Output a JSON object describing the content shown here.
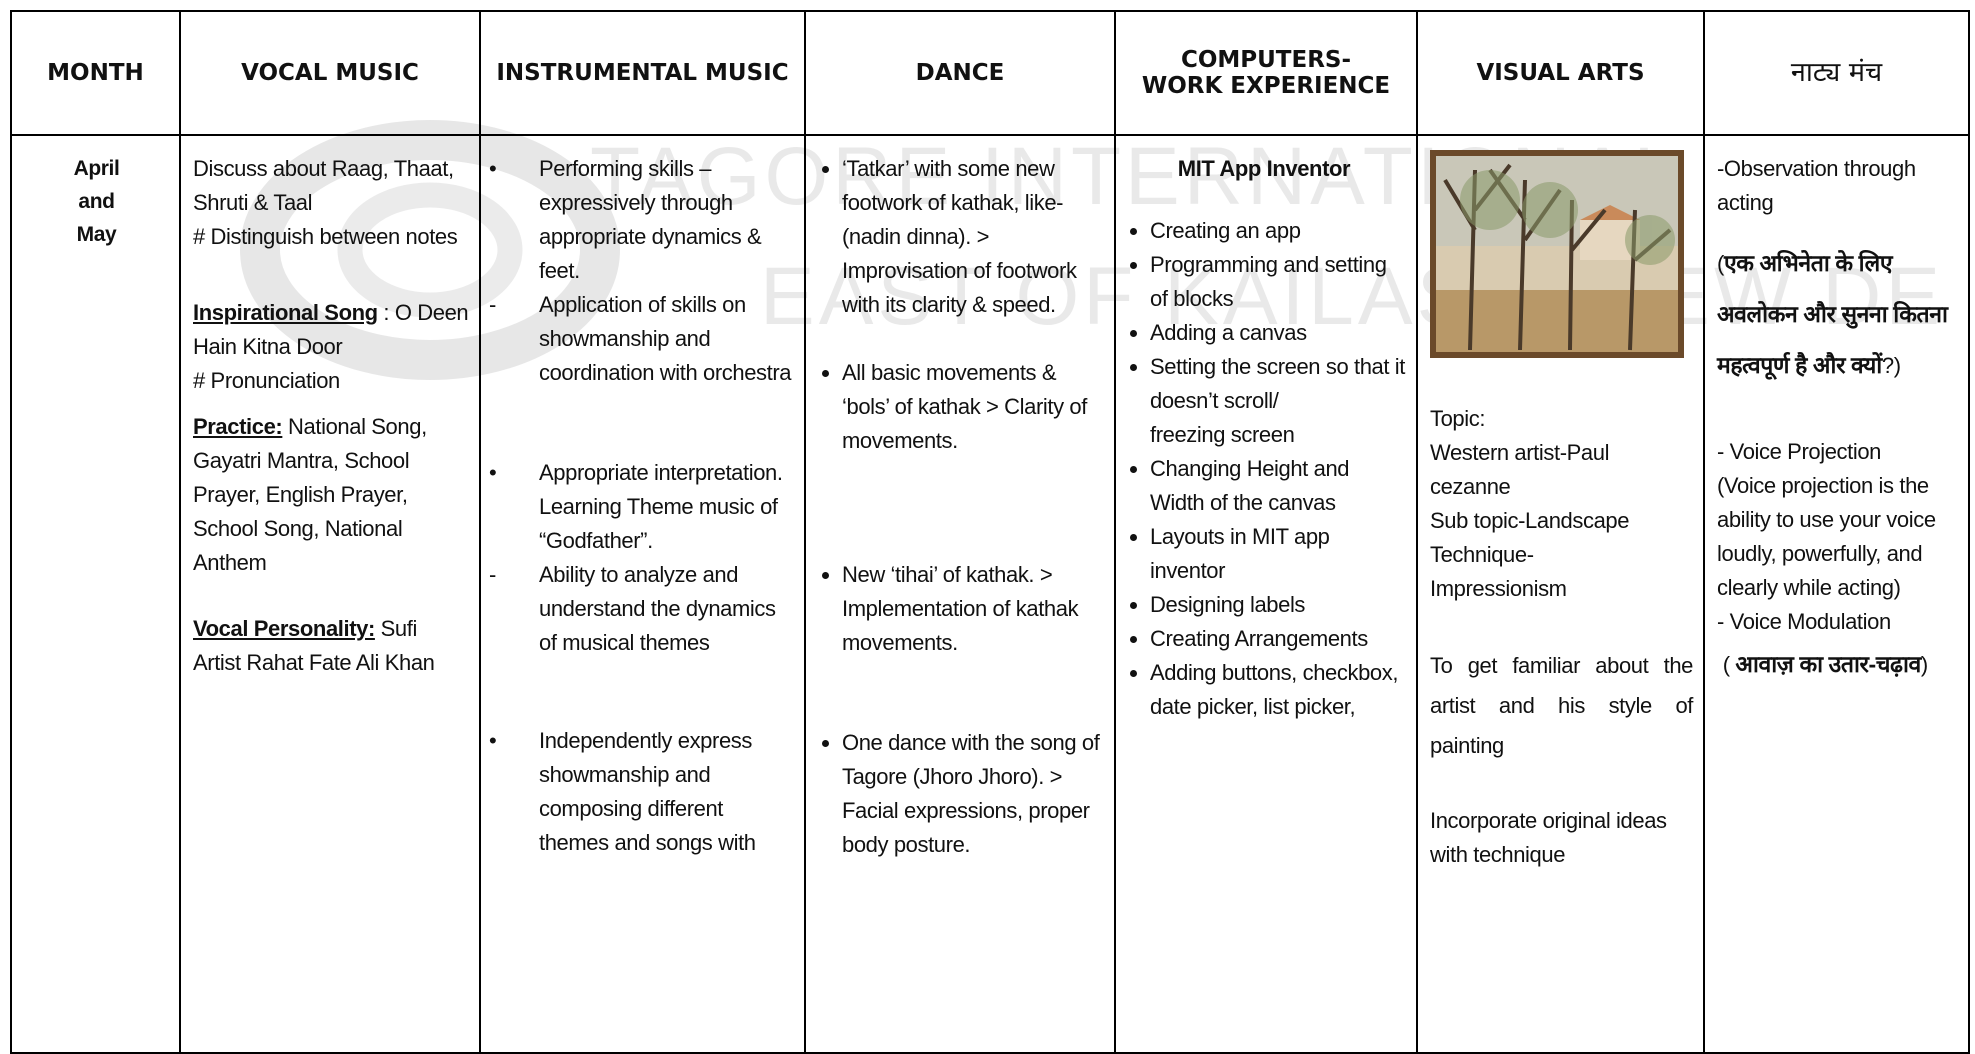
{
  "watermark": [
    "TAGORE INTERNATIONAL",
    "EAST OF KAILASH, NEW DE"
  ],
  "table": {
    "headers": [
      "MONTH",
      "VOCAL MUSIC",
      "INSTRUMENTAL MUSIC",
      "DANCE",
      "COMPUTERS-\nWORK EXPERIENCE",
      "VISUAL ARTS",
      "नाट्य मंच"
    ],
    "month": "April\nand\nMay",
    "vocal": [
      {
        "text": "Discuss about Raag, Thaat, Shruti & Taal"
      },
      {
        "text": "# Distinguish between notes"
      },
      {
        "label": "Inspirational Song",
        "text": " : O Deen Hain Kitna Door"
      },
      {
        "text": "# Pronunciation"
      },
      {
        "label": "Practice:",
        "text": " National Song, Gayatri Mantra, School Prayer, English Prayer, School Song, National Anthem"
      },
      {
        "label": "Vocal Personality:",
        "text": " Sufi Artist Rahat Fate Ali Khan"
      }
    ],
    "instrumental": [
      {
        "marker": "•",
        "text": "Performing skills – expressively through appropriate dynamics & feet."
      },
      {
        "marker": "-",
        "text": "Application of skills on showmanship and coordination with orchestra"
      },
      {
        "marker": "•",
        "text": "Appropriate interpretation. Learning Theme music of “Godfather”."
      },
      {
        "marker": "-",
        "text": "Ability to analyze and understand the dynamics of musical themes"
      },
      {
        "marker": "•",
        "text": "Independently express showmanship and composing different themes and songs with"
      }
    ],
    "dance": [
      "‘Tatkar’ with some new footwork of kathak, like- (nadin dinna). > Improvisation of footwork with its clarity & speed.",
      "All basic movements & ‘bols’ of kathak > Clarity of movements.",
      "New ‘tihai’ of kathak. > Implementation of kathak movements.",
      "One dance with the song of Tagore (Jhoro Jhoro). > Facial expressions, proper body posture."
    ],
    "computers": {
      "heading": "MIT App Inventor",
      "items": [
        "Creating an app",
        "Programming and setting of blocks",
        "Adding a canvas",
        "Setting the screen so that it doesn’t scroll/\nfreezing screen",
        "Changing Height and Width of the canvas",
        "Layouts in MIT app inventor",
        "Designing labels",
        "Creating Arrangements",
        "Adding buttons, checkbox, date picker, list picker,"
      ]
    },
    "visual_arts": [
      "Topic:",
      "Western artist-Paul cezanne",
      "Sub topic-Landscape",
      "Technique-\nImpressionism",
      "To get familiar about the artist and his style of painting",
      "Incorporate original ideas with technique"
    ],
    "theatre": [
      {
        "text": "-Observation through acting"
      },
      {
        "open": "(",
        "bold": "एक अभिनेता के लिए अवलोकन और सुनना कितना महत्वपूर्ण है और क्यों",
        "close": "?)"
      },
      {
        "text": "- Voice Projection"
      },
      {
        "text": "(Voice projection is the ability to use your voice loudly, powerfully, and clearly while acting)"
      },
      {
        "text": "- Voice Modulation"
      },
      {
        "open": " ( ",
        "bold": "आवाज़ का उतार-चढ़ाव",
        "close": ")"
      }
    ]
  }
}
